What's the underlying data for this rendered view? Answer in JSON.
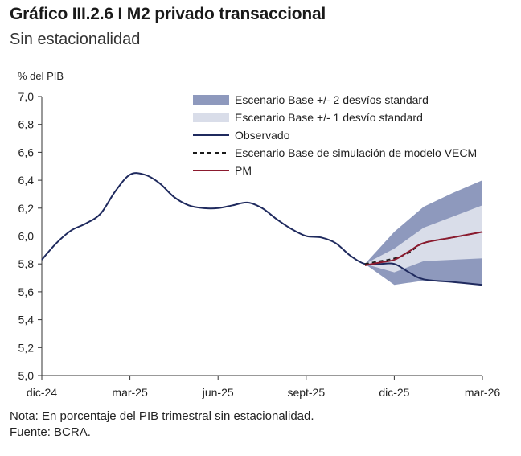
{
  "header": {
    "title": "Gráfico III.2.6 I M2 privado transaccional",
    "subtitle": "Sin estacionalidad"
  },
  "footer": {
    "note": "Nota: En porcentaje del PIB trimestral sin estacionalidad.",
    "source": "Fuente: BCRA."
  },
  "colors": {
    "band2": "#8e99bd",
    "band1": "#d9dde9",
    "observed": "#1f2a5e",
    "vecm": "#1a1a1a",
    "pm": "#8b1a2e",
    "axis": "#333333"
  },
  "chart_data": {
    "type": "line",
    "ylabel": "% del PIB",
    "xlabel": "",
    "ylim": [
      5.0,
      7.0
    ],
    "yticks": [
      "5,0",
      "5,2",
      "5,4",
      "5,6",
      "5,8",
      "6,0",
      "6,2",
      "6,4",
      "6,6",
      "6,8",
      "7,0"
    ],
    "xlim": [
      0,
      15
    ],
    "xticks": [
      {
        "x": 0,
        "label": "dic-24"
      },
      {
        "x": 3,
        "label": "mar-25"
      },
      {
        "x": 6,
        "label": "jun-25"
      },
      {
        "x": 9,
        "label": "sept-25"
      },
      {
        "x": 12,
        "label": "dic-25"
      },
      {
        "x": 15,
        "label": "mar-26"
      }
    ],
    "legend_position": "top-right",
    "legend": [
      {
        "key": "band2",
        "label": "Escenario Base +/- 2 desvíos standard",
        "style": "band"
      },
      {
        "key": "band1",
        "label": "Escenario Base +/- 1 desvío standard",
        "style": "band"
      },
      {
        "key": "observed",
        "label": "Observado",
        "style": "line"
      },
      {
        "key": "vecm",
        "label": "Escenario Base de simulación de modelo VECM",
        "style": "dashed"
      },
      {
        "key": "pm",
        "label": "PM",
        "style": "line"
      }
    ],
    "series": [
      {
        "name": "Observado",
        "key": "observed",
        "x": [
          0,
          0.5,
          1,
          1.5,
          2,
          2.5,
          3,
          3.5,
          4,
          4.5,
          5,
          5.5,
          6,
          6.5,
          7,
          7.5,
          8,
          8.5,
          9,
          9.5,
          10,
          10.5,
          11,
          11.5,
          12,
          12.5,
          13,
          14,
          15
        ],
        "y": [
          5.83,
          5.95,
          6.04,
          6.09,
          6.16,
          6.32,
          6.44,
          6.44,
          6.38,
          6.28,
          6.22,
          6.2,
          6.2,
          6.22,
          6.24,
          6.2,
          6.12,
          6.05,
          6.0,
          5.99,
          5.95,
          5.86,
          5.8,
          5.8,
          5.8,
          5.74,
          5.69,
          5.67,
          5.65
        ]
      },
      {
        "name": "Escenario Base de simulación de modelo VECM",
        "key": "vecm",
        "x": [
          11,
          11.5,
          12,
          12.5,
          13,
          14,
          15
        ],
        "y": [
          5.8,
          5.82,
          5.84,
          5.88,
          5.95,
          5.99,
          6.03
        ]
      },
      {
        "name": "PM",
        "key": "pm",
        "x": [
          11,
          11.5,
          12,
          12.5,
          13,
          14,
          15
        ],
        "y": [
          5.79,
          5.81,
          5.83,
          5.89,
          5.95,
          5.99,
          6.03
        ]
      }
    ],
    "bands": [
      {
        "name": "Escenario Base +/- 2 desvíos standard",
        "key": "band2",
        "x": [
          11,
          12,
          13,
          14,
          15
        ],
        "upper": [
          5.8,
          6.03,
          6.21,
          6.31,
          6.4
        ],
        "lower": [
          5.8,
          5.65,
          5.68,
          5.67,
          5.65
        ]
      },
      {
        "name": "Escenario Base +/- 1 desvío standard",
        "key": "band1",
        "x": [
          11,
          12,
          13,
          14,
          15
        ],
        "upper": [
          5.8,
          5.91,
          6.06,
          6.14,
          6.22
        ],
        "lower": [
          5.8,
          5.74,
          5.82,
          5.83,
          5.84
        ]
      }
    ]
  }
}
